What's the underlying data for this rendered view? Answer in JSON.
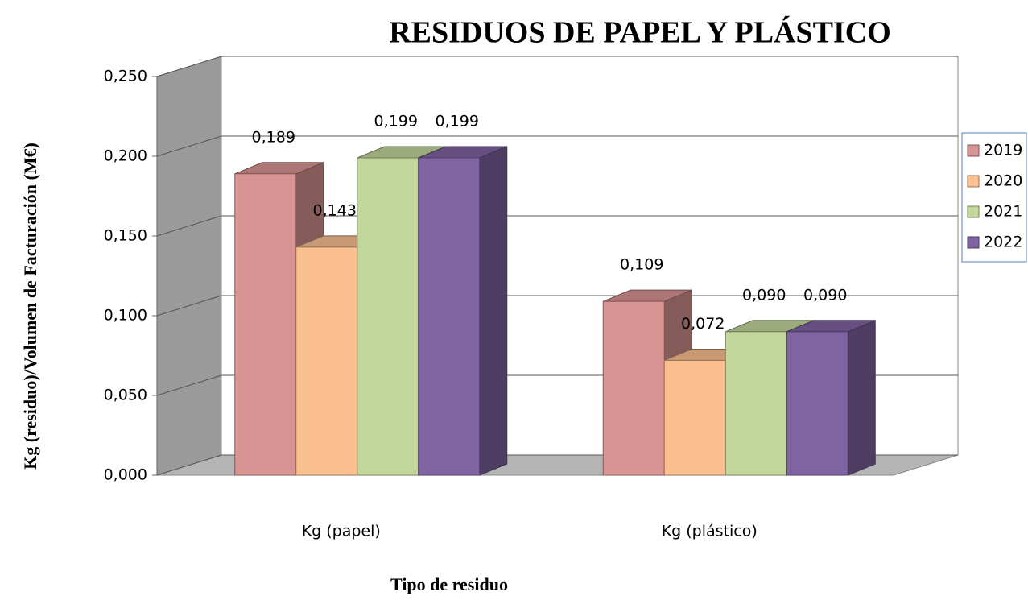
{
  "chart_data": {
    "type": "bar3d",
    "title": "RESIDUOS DE PAPEL Y PLÁSTICO",
    "xlabel": "Tipo de residuo",
    "ylabel": "Kg (residuo)/Volumen de  Facturación (M€)",
    "categories": [
      "Kg (papel)",
      "Kg (plástico)"
    ],
    "series": [
      {
        "name": "2019",
        "color": "#d99594",
        "values": [
          0.189,
          0.109
        ],
        "value_labels": [
          "0,189",
          "0,109"
        ]
      },
      {
        "name": "2020",
        "color": "#fac090",
        "values": [
          0.143,
          0.072
        ],
        "value_labels": [
          "0,143",
          "0,072"
        ]
      },
      {
        "name": "2021",
        "color": "#c3d69b",
        "values": [
          0.199,
          0.09
        ],
        "value_labels": [
          "0,199",
          "0,090"
        ]
      },
      {
        "name": "2022",
        "color": "#8064a2",
        "values": [
          0.199,
          0.09
        ],
        "value_labels": [
          "0,199",
          "0,090"
        ]
      }
    ],
    "ylim": [
      0,
      0.25
    ],
    "yticks": [
      {
        "value": 0,
        "label": "0,000"
      },
      {
        "value": 0.05,
        "label": "0,050"
      },
      {
        "value": 0.1,
        "label": "0,100"
      },
      {
        "value": 0.15,
        "label": "0,150"
      },
      {
        "value": 0.2,
        "label": "0,200"
      },
      {
        "value": 0.25,
        "label": "0,250"
      }
    ],
    "grid": true,
    "legend": "right"
  }
}
